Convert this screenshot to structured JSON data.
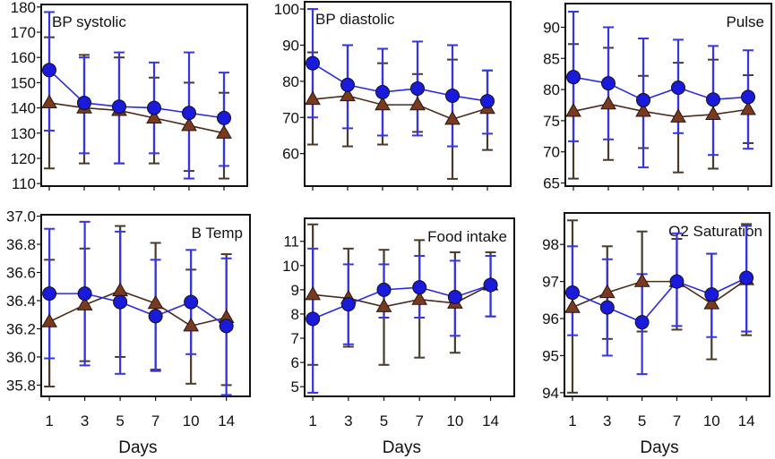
{
  "figure": {
    "x_axis_label": "Days",
    "series_styles": [
      {
        "key": "A",
        "marker": "circle",
        "color": "#1a1adb",
        "line_color": "#2a2ae0",
        "error_color": "#3535e6"
      },
      {
        "key": "B",
        "marker": "triangle",
        "color": "#7a3a22",
        "line_color": "#4a2a1a",
        "error_color": "#4a3a2a"
      }
    ]
  },
  "chart_data": [
    {
      "type": "line",
      "title": "BP systolic",
      "title_position": "top-left",
      "xlabel": "",
      "x": [
        "1",
        "3",
        "5",
        "7",
        "10",
        "14"
      ],
      "ylim": [
        109,
        181
      ],
      "yticks": [
        110,
        120,
        130,
        140,
        150,
        160,
        170,
        180
      ],
      "ytick_labels": [
        "110",
        "120",
        "130",
        "140",
        "150",
        "160",
        "170",
        "180"
      ],
      "series": [
        {
          "name": "circle-series",
          "values": [
            155,
            142,
            140.5,
            140,
            138,
            136
          ],
          "err_low": [
            131,
            122,
            118,
            122,
            112,
            117
          ],
          "err_high": [
            178,
            160,
            162,
            158,
            162,
            154
          ]
        },
        {
          "name": "triangle-series",
          "values": [
            142,
            140,
            139,
            136,
            133,
            130
          ],
          "err_low": [
            116,
            118,
            118,
            118,
            115,
            112
          ],
          "err_high": [
            168,
            161,
            160,
            152,
            150,
            146
          ]
        }
      ]
    },
    {
      "type": "line",
      "title": "BP diastolic",
      "title_position": "top-left",
      "xlabel": "",
      "x": [
        "1",
        "3",
        "5",
        "7",
        "10",
        "14"
      ],
      "ylim": [
        51,
        102
      ],
      "yticks": [
        60,
        70,
        80,
        90,
        100
      ],
      "ytick_labels": [
        "60",
        "70",
        "80",
        "90",
        "100"
      ],
      "series": [
        {
          "name": "circle-series",
          "values": [
            85,
            79,
            77,
            78,
            76,
            74.5
          ],
          "err_low": [
            70,
            67,
            65,
            65,
            62,
            65.5
          ],
          "err_high": [
            100,
            90,
            89,
            91,
            90,
            83
          ]
        },
        {
          "name": "triangle-series",
          "values": [
            75,
            76,
            73.5,
            73.5,
            69.5,
            72.5
          ],
          "err_low": [
            62.5,
            62,
            62.5,
            66,
            53,
            61
          ],
          "err_high": [
            88,
            90,
            85,
            82,
            86,
            83
          ]
        }
      ]
    },
    {
      "type": "line",
      "title": "Pulse",
      "title_position": "top-right",
      "xlabel": "",
      "x": [
        "1",
        "3",
        "5",
        "7",
        "10",
        "14"
      ],
      "ylim": [
        64.5,
        93.8
      ],
      "yticks": [
        65,
        70,
        75,
        80,
        85,
        90
      ],
      "ytick_labels": [
        "65",
        "70",
        "75",
        "80",
        "85",
        "90"
      ],
      "series": [
        {
          "name": "circle-series",
          "values": [
            82,
            81,
            78.3,
            80.3,
            78.4,
            78.8
          ],
          "err_low": [
            71.7,
            72,
            67.5,
            73,
            69.5,
            70.5
          ],
          "err_high": [
            92.5,
            90,
            88.2,
            88,
            87,
            86.3
          ]
        },
        {
          "name": "triangle-series",
          "values": [
            76.5,
            77.7,
            76.5,
            75.6,
            76,
            76.8
          ],
          "err_low": [
            65.7,
            68.7,
            70.6,
            66.7,
            67.3,
            71.4
          ],
          "err_high": [
            87.3,
            86.7,
            82.2,
            84.3,
            84.8,
            82.3
          ]
        }
      ]
    },
    {
      "type": "line",
      "title": "B Temp",
      "title_position": "top-right",
      "xlabel": "Days",
      "x": [
        "1",
        "3",
        "5",
        "7",
        "10",
        "14"
      ],
      "ylim": [
        35.72,
        37.01
      ],
      "yticks": [
        35.8,
        36.0,
        36.2,
        36.4,
        36.6,
        36.8,
        37.0
      ],
      "ytick_labels": [
        "35.8",
        "36.0",
        "36.2",
        "36.4",
        "36.6",
        "36.8",
        "37.0"
      ],
      "series": [
        {
          "name": "circle-series",
          "values": [
            36.45,
            36.45,
            36.39,
            36.29,
            36.39,
            36.22
          ],
          "err_low": [
            35.99,
            35.94,
            35.88,
            35.9,
            36.02,
            35.73
          ],
          "err_high": [
            36.91,
            36.96,
            36.89,
            36.69,
            36.76,
            36.7
          ]
        },
        {
          "name": "triangle-series",
          "values": [
            36.25,
            36.37,
            36.47,
            36.38,
            36.22,
            36.28
          ],
          "err_low": [
            35.79,
            35.97,
            36.0,
            35.91,
            35.81,
            35.8
          ],
          "err_high": [
            36.69,
            36.77,
            36.93,
            36.81,
            36.62,
            36.73
          ]
        }
      ]
    },
    {
      "type": "line",
      "title": "Food intake",
      "title_position": "top-right",
      "xlabel": "Days",
      "x": [
        "1",
        "3",
        "5",
        "7",
        "10",
        "14"
      ],
      "ylim": [
        4.6,
        11.95
      ],
      "yticks": [
        5,
        6,
        7,
        8,
        9,
        10,
        11
      ],
      "ytick_labels": [
        "5",
        "6",
        "7",
        "8",
        "9",
        "10",
        "11"
      ],
      "series": [
        {
          "name": "circle-series",
          "values": [
            7.8,
            8.4,
            9.0,
            9.1,
            8.7,
            9.2
          ],
          "err_low": [
            4.75,
            6.75,
            7.85,
            7.85,
            7.1,
            7.9
          ],
          "err_high": [
            10.7,
            10.05,
            10.05,
            10.4,
            10.2,
            10.4
          ]
        },
        {
          "name": "triangle-series",
          "values": [
            8.8,
            8.65,
            8.3,
            8.6,
            8.45,
            9.2
          ],
          "err_low": [
            5.9,
            6.65,
            5.9,
            6.2,
            6.4,
            7.9
          ],
          "err_high": [
            11.7,
            10.7,
            10.65,
            11.05,
            10.55,
            10.55
          ]
        }
      ]
    },
    {
      "type": "line",
      "title": "O2 Saturation",
      "title_position": "top-right",
      "xlabel": "Days",
      "x": [
        "1",
        "3",
        "5",
        "7",
        "10",
        "14"
      ],
      "ylim": [
        93.9,
        98.85
      ],
      "yticks": [
        94,
        95,
        96,
        97,
        98
      ],
      "ytick_labels": [
        "94",
        "95",
        "96",
        "97",
        "98"
      ],
      "series": [
        {
          "name": "circle-series",
          "values": [
            96.7,
            96.3,
            95.9,
            97.0,
            96.65,
            97.1
          ],
          "err_low": [
            95.55,
            95.0,
            94.5,
            95.8,
            95.5,
            95.65
          ],
          "err_high": [
            97.95,
            97.6,
            97.2,
            98.3,
            97.75,
            98.5
          ]
        },
        {
          "name": "triangle-series",
          "values": [
            96.3,
            96.7,
            97.0,
            97.0,
            96.4,
            97.05
          ],
          "err_low": [
            94.0,
            95.45,
            95.65,
            95.7,
            94.9,
            95.55
          ],
          "err_high": [
            98.65,
            97.95,
            98.35,
            98.15,
            97.75,
            98.55
          ]
        }
      ]
    }
  ]
}
